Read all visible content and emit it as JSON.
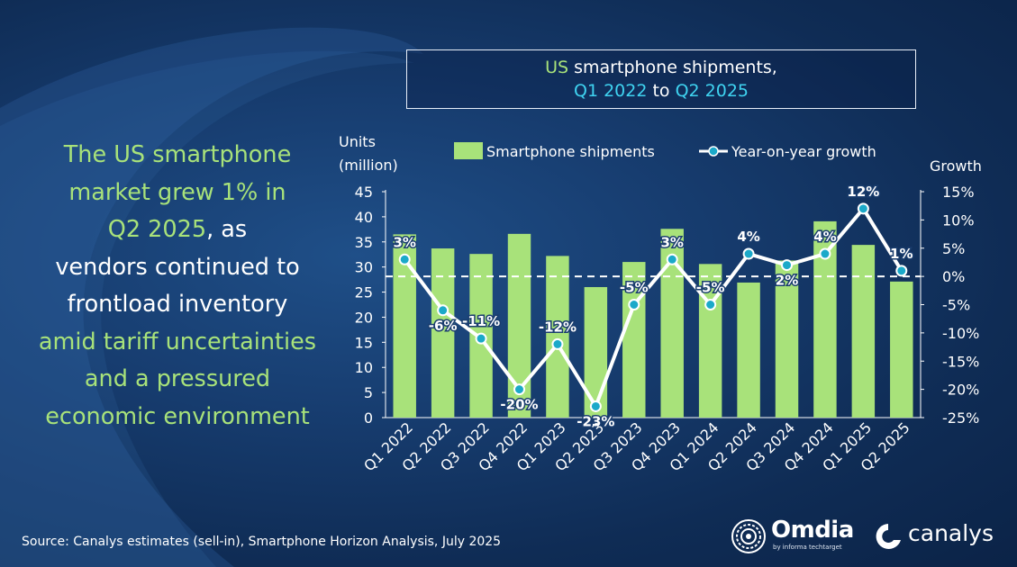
{
  "headline": {
    "line1": "The US smartphone",
    "line2": "market grew 1% in",
    "line3_green": "Q2 2025",
    "line3_white": ", as",
    "line4": "vendors continued to",
    "line5": "frontload inventory",
    "line6": "amid tariff uncertainties",
    "line7": "and a pressured",
    "line8": "economic environment"
  },
  "title_box": {
    "part1_green": "US",
    "part1_white": " smartphone shipments,",
    "part2_a": "Q1 2022",
    "part2_to": " to ",
    "part2_b": "Q2 2025"
  },
  "source": "Source: Canalys estimates (sell-in), Smartphone Horizon Analysis, July 2025",
  "logos": {
    "omdia": "Omdia",
    "omdia_sub": "by informa techtarget",
    "canalys": "canalys"
  },
  "colors": {
    "bar": "#a8e27a",
    "line": "#ffffff",
    "marker": "#1ba9c9",
    "zero_line": "#ffffff"
  },
  "chart_data": {
    "type": "bar",
    "title": "US smartphone shipments, Q1 2022 to Q2 2025",
    "categories": [
      "Q1 2022",
      "Q2 2022",
      "Q3 2022",
      "Q4 2022",
      "Q1 2023",
      "Q2 2023",
      "Q3 2023",
      "Q4 2023",
      "Q1 2024",
      "Q2 2024",
      "Q3 2024",
      "Q4 2024",
      "Q1 2025",
      "Q2 2025"
    ],
    "series": [
      {
        "name": "Smartphone shipments",
        "type": "bar",
        "axis": "left",
        "values": [
          36.5,
          33.7,
          32.6,
          36.6,
          32.2,
          26.0,
          31.0,
          37.6,
          30.6,
          26.9,
          31.3,
          39.1,
          34.4,
          27.1
        ]
      },
      {
        "name": "Year-on-year growth",
        "type": "line",
        "axis": "right",
        "values": [
          3,
          -6,
          -11,
          -20,
          -12,
          -23,
          -5,
          3,
          -5,
          4,
          2,
          4,
          12,
          1
        ],
        "labels": [
          "3%",
          "-6%",
          "-11%",
          "-20%",
          "-12%",
          "-23%",
          "-5%",
          "3%",
          "-5%",
          "4%",
          "2%",
          "4%",
          "12%",
          "1%"
        ]
      }
    ],
    "ylabel": "Units (million)",
    "ylabel_line1": "Units",
    "ylabel_line2": "(million)",
    "y2label": "Growth",
    "ylim": [
      0,
      45
    ],
    "y2lim": [
      -25,
      15
    ],
    "yticks": [
      "0",
      "5",
      "10",
      "15",
      "20",
      "25",
      "30",
      "35",
      "40",
      "45"
    ],
    "y2ticks": [
      "-25%",
      "-20%",
      "-15%",
      "-10%",
      "-5%",
      "0%",
      "5%",
      "10%",
      "15%"
    ],
    "legend": [
      "Smartphone shipments",
      "Year-on-year growth"
    ],
    "legend_position": "top"
  }
}
